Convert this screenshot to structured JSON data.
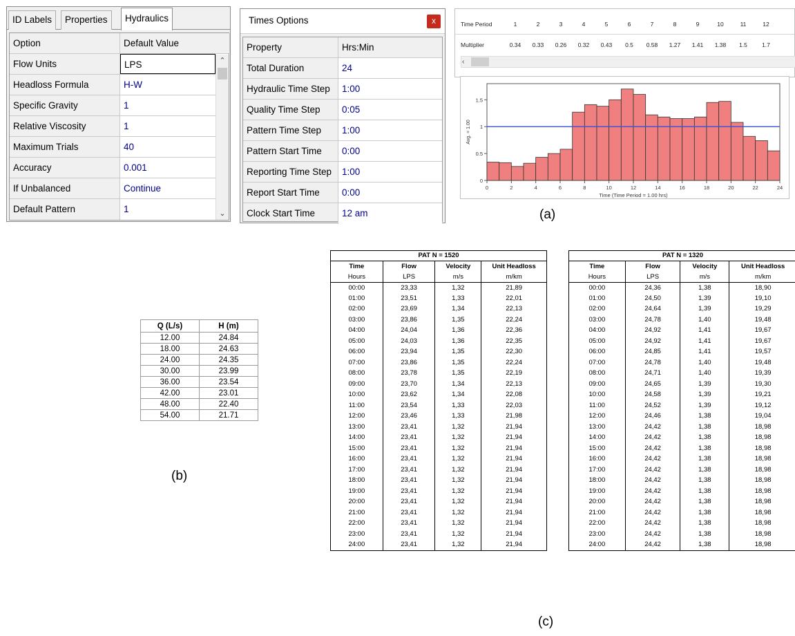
{
  "hydraulics_panel": {
    "tabs": [
      "ID Labels",
      "Properties",
      "Hydraulics"
    ],
    "active_tab": "Hydraulics",
    "header": {
      "option": "Option",
      "value": "Default Value"
    },
    "rows": [
      {
        "option": "Flow Units",
        "value": "LPS"
      },
      {
        "option": "Headloss Formula",
        "value": "H-W"
      },
      {
        "option": "Specific Gravity",
        "value": "1"
      },
      {
        "option": "Relative Viscosity",
        "value": "1"
      },
      {
        "option": "Maximum Trials",
        "value": "40"
      },
      {
        "option": "Accuracy",
        "value": "0.001"
      },
      {
        "option": "If Unbalanced",
        "value": "Continue"
      },
      {
        "option": "Default Pattern",
        "value": "1"
      }
    ]
  },
  "times_options": {
    "title": "Times Options",
    "close_icon": "x",
    "header": {
      "property": "Property",
      "value": "Hrs:Min"
    },
    "rows": [
      {
        "property": "Total Duration",
        "value": "24"
      },
      {
        "property": "Hydraulic Time Step",
        "value": "1:00"
      },
      {
        "property": "Quality Time Step",
        "value": "0:05"
      },
      {
        "property": "Pattern Time Step",
        "value": "1:00"
      },
      {
        "property": "Pattern Start Time",
        "value": "0:00"
      },
      {
        "property": "Reporting Time Step",
        "value": "1:00"
      },
      {
        "property": "Report Start Time",
        "value": "0:00"
      },
      {
        "property": "Clock Start Time",
        "value": "12 am"
      }
    ]
  },
  "pattern_editor": {
    "row_labels": {
      "period": "Time Period",
      "multiplier": "Multiplier"
    },
    "periods": [
      "1",
      "2",
      "3",
      "4",
      "5",
      "6",
      "7",
      "8",
      "9",
      "10",
      "11",
      "12"
    ],
    "multipliers": [
      "0.34",
      "0.33",
      "0.26",
      "0.32",
      "0.43",
      "0.5",
      "0.58",
      "1.27",
      "1.41",
      "1.38",
      "1.5",
      "1.7"
    ],
    "scroll_left_icon": "‹"
  },
  "chart_data": {
    "type": "bar",
    "x": [
      0,
      1,
      2,
      3,
      4,
      5,
      6,
      7,
      8,
      9,
      10,
      11,
      12,
      13,
      14,
      15,
      16,
      17,
      18,
      19,
      20,
      21,
      22,
      23
    ],
    "values": [
      0.34,
      0.33,
      0.26,
      0.32,
      0.43,
      0.5,
      0.58,
      1.27,
      1.41,
      1.38,
      1.5,
      1.7,
      1.6,
      1.22,
      1.18,
      1.15,
      1.15,
      1.18,
      1.45,
      1.47,
      1.08,
      0.82,
      0.74,
      0.55
    ],
    "average_line": 1.0,
    "ylabel": "Avg. = 1.00",
    "xlabel": "Time (Time Period = 1.00 hrs)",
    "xlim": [
      0,
      24
    ],
    "ylim": [
      0,
      1.8
    ],
    "xticks": [
      "0",
      "2",
      "4",
      "6",
      "8",
      "10",
      "12",
      "14",
      "16",
      "18",
      "20",
      "22",
      "24"
    ],
    "yticks": [
      "0",
      "0.5",
      "1",
      "1.5"
    ],
    "bar_color": "#f08080",
    "line_color": "#3a4fd8"
  },
  "fig_labels": {
    "a": "(a)",
    "b": "(b)",
    "c": "(c)"
  },
  "pump_curve": {
    "headers": [
      "Q (L/s)",
      "H (m)"
    ],
    "rows": [
      [
        "12.00",
        "24.84"
      ],
      [
        "18.00",
        "24.63"
      ],
      [
        "24.00",
        "24.35"
      ],
      [
        "30.00",
        "23.99"
      ],
      [
        "36.00",
        "23.54"
      ],
      [
        "42.00",
        "23.01"
      ],
      [
        "48.00",
        "22.40"
      ],
      [
        "54.00",
        "21.71"
      ]
    ]
  },
  "pat_tables": [
    {
      "title": "PAT  N = 1520",
      "headers": [
        "Time",
        "Flow",
        "Velocity",
        "Unit Headloss"
      ],
      "units": [
        "Hours",
        "LPS",
        "m/s",
        "m/km"
      ],
      "rows": [
        [
          "00:00",
          "23,33",
          "1,32",
          "21,89"
        ],
        [
          "01:00",
          "23,51",
          "1,33",
          "22,01"
        ],
        [
          "02:00",
          "23,69",
          "1,34",
          "22,13"
        ],
        [
          "03:00",
          "23,86",
          "1,35",
          "22,24"
        ],
        [
          "04:00",
          "24,04",
          "1,36",
          "22,36"
        ],
        [
          "05:00",
          "24,03",
          "1,36",
          "22,35"
        ],
        [
          "06:00",
          "23,94",
          "1,35",
          "22,30"
        ],
        [
          "07:00",
          "23,86",
          "1,35",
          "22,24"
        ],
        [
          "08:00",
          "23,78",
          "1,35",
          "22,19"
        ],
        [
          "09:00",
          "23,70",
          "1,34",
          "22,13"
        ],
        [
          "10:00",
          "23,62",
          "1,34",
          "22,08"
        ],
        [
          "11:00",
          "23,54",
          "1,33",
          "22,03"
        ],
        [
          "12:00",
          "23,46",
          "1,33",
          "21,98"
        ],
        [
          "13:00",
          "23,41",
          "1,32",
          "21,94"
        ],
        [
          "14:00",
          "23,41",
          "1,32",
          "21,94"
        ],
        [
          "15:00",
          "23,41",
          "1,32",
          "21,94"
        ],
        [
          "16:00",
          "23,41",
          "1,32",
          "21,94"
        ],
        [
          "17:00",
          "23,41",
          "1,32",
          "21,94"
        ],
        [
          "18:00",
          "23,41",
          "1,32",
          "21,94"
        ],
        [
          "19:00",
          "23,41",
          "1,32",
          "21,94"
        ],
        [
          "20:00",
          "23,41",
          "1,32",
          "21,94"
        ],
        [
          "21:00",
          "23,41",
          "1,32",
          "21,94"
        ],
        [
          "22:00",
          "23,41",
          "1,32",
          "21,94"
        ],
        [
          "23:00",
          "23,41",
          "1,32",
          "21,94"
        ],
        [
          "24:00",
          "23,41",
          "1,32",
          "21,94"
        ]
      ]
    },
    {
      "title": "PAT N = 1320",
      "headers": [
        "Time",
        "Flow",
        "Velocity",
        "Unit Headloss"
      ],
      "units": [
        "Hours",
        "LPS",
        "m/s",
        "m/km"
      ],
      "rows": [
        [
          "00:00",
          "24,36",
          "1,38",
          "18,90"
        ],
        [
          "01:00",
          "24,50",
          "1,39",
          "19,10"
        ],
        [
          "02:00",
          "24,64",
          "1,39",
          "19,29"
        ],
        [
          "03:00",
          "24,78",
          "1,40",
          "19,48"
        ],
        [
          "04:00",
          "24,92",
          "1,41",
          "19,67"
        ],
        [
          "05:00",
          "24,92",
          "1,41",
          "19,67"
        ],
        [
          "06:00",
          "24,85",
          "1,41",
          "19,57"
        ],
        [
          "07:00",
          "24,78",
          "1,40",
          "19,48"
        ],
        [
          "08:00",
          "24,71",
          "1,40",
          "19,39"
        ],
        [
          "09:00",
          "24,65",
          "1,39",
          "19,30"
        ],
        [
          "10:00",
          "24,58",
          "1,39",
          "19,21"
        ],
        [
          "11:00",
          "24,52",
          "1,39",
          "19,12"
        ],
        [
          "12:00",
          "24,46",
          "1,38",
          "19,04"
        ],
        [
          "13:00",
          "24,42",
          "1,38",
          "18,98"
        ],
        [
          "14:00",
          "24,42",
          "1,38",
          "18,98"
        ],
        [
          "15:00",
          "24,42",
          "1,38",
          "18,98"
        ],
        [
          "16:00",
          "24,42",
          "1,38",
          "18,98"
        ],
        [
          "17:00",
          "24,42",
          "1,38",
          "18,98"
        ],
        [
          "18:00",
          "24,42",
          "1,38",
          "18,98"
        ],
        [
          "19:00",
          "24,42",
          "1,38",
          "18,98"
        ],
        [
          "20:00",
          "24,42",
          "1,38",
          "18,98"
        ],
        [
          "21:00",
          "24,42",
          "1,38",
          "18,98"
        ],
        [
          "22:00",
          "24,42",
          "1,38",
          "18,98"
        ],
        [
          "23:00",
          "24,42",
          "1,38",
          "18,98"
        ],
        [
          "24:00",
          "24,42",
          "1,38",
          "18,98"
        ]
      ]
    }
  ]
}
